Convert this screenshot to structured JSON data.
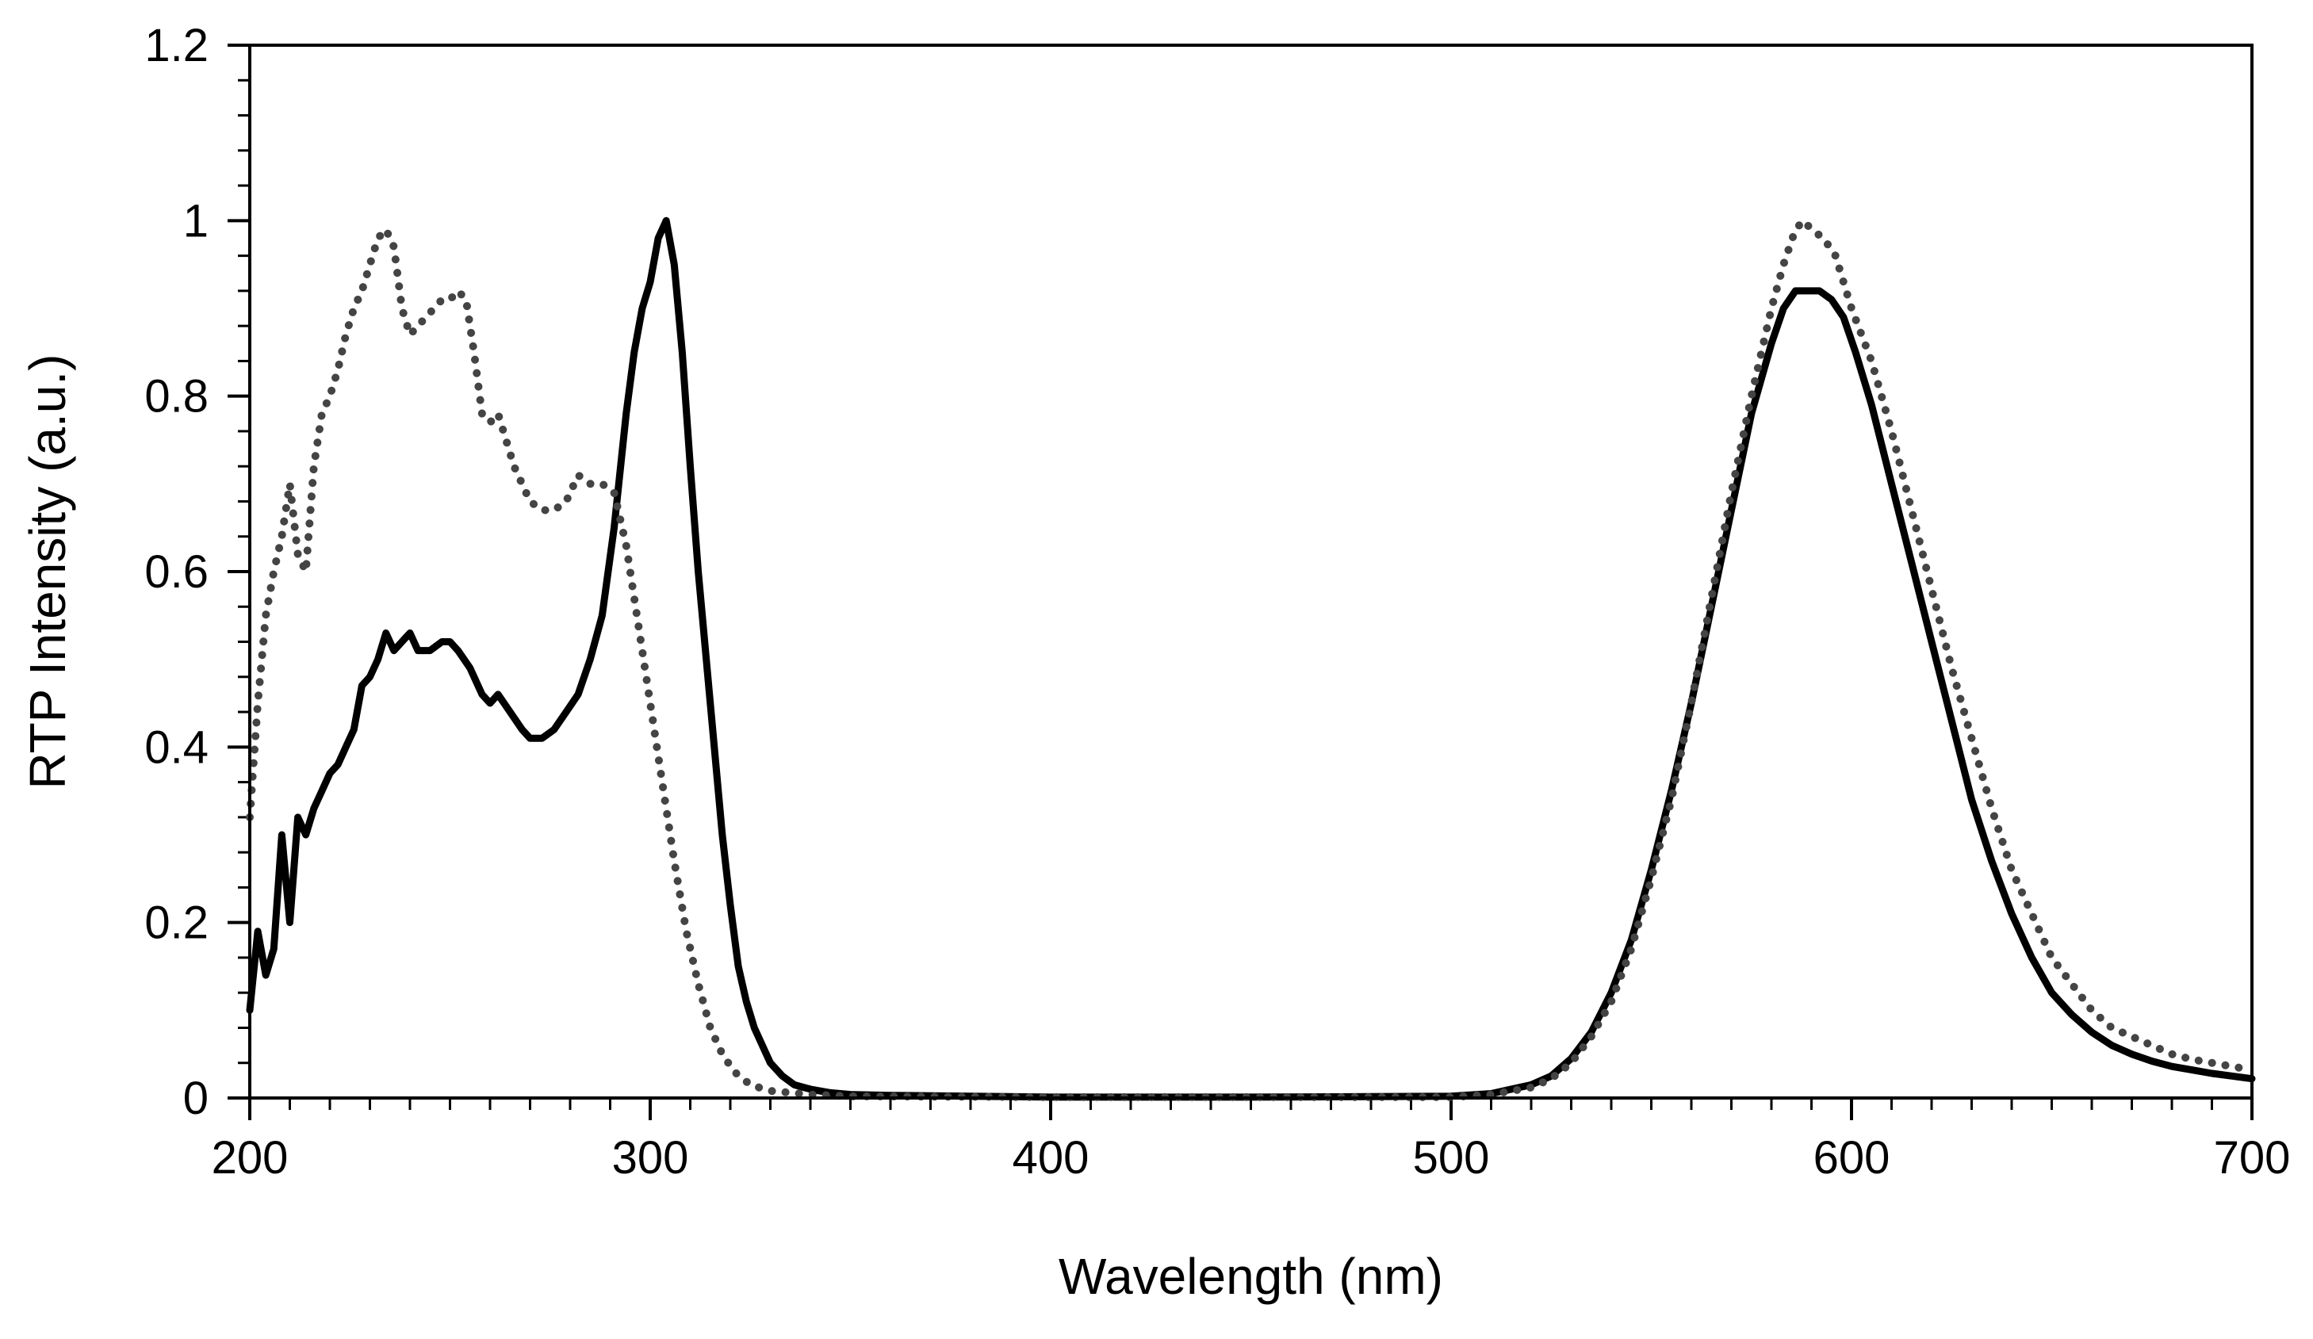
{
  "chart_data": {
    "type": "line",
    "title": "",
    "xlabel": "Wavelength (nm)",
    "ylabel": "RTP Intensity (a.u.)",
    "xlim": [
      200,
      700
    ],
    "ylim": [
      0,
      1.2
    ],
    "x_ticks": [
      200,
      300,
      400,
      500,
      600,
      700
    ],
    "y_ticks": [
      0,
      0.2,
      0.4,
      0.6,
      0.8,
      1,
      1.2
    ],
    "x_tick_labels": [
      "200",
      "300",
      "400",
      "500",
      "600",
      "700"
    ],
    "y_tick_labels": [
      "0",
      "0.2",
      "0.4",
      "0.6",
      "0.8",
      "1",
      "1.2"
    ],
    "x_minor_step": 10,
    "y_minor_step": 0.04,
    "grid": false,
    "legend": "none",
    "series": [
      {
        "name": "solid",
        "style": "solid",
        "color": "#000000",
        "points": [
          [
            200,
            0.1
          ],
          [
            202,
            0.19
          ],
          [
            204,
            0.14
          ],
          [
            206,
            0.17
          ],
          [
            208,
            0.3
          ],
          [
            210,
            0.2
          ],
          [
            212,
            0.32
          ],
          [
            214,
            0.3
          ],
          [
            216,
            0.33
          ],
          [
            218,
            0.35
          ],
          [
            220,
            0.37
          ],
          [
            222,
            0.38
          ],
          [
            224,
            0.4
          ],
          [
            226,
            0.42
          ],
          [
            228,
            0.47
          ],
          [
            230,
            0.48
          ],
          [
            232,
            0.5
          ],
          [
            234,
            0.53
          ],
          [
            236,
            0.51
          ],
          [
            238,
            0.52
          ],
          [
            240,
            0.53
          ],
          [
            242,
            0.51
          ],
          [
            245,
            0.51
          ],
          [
            248,
            0.52
          ],
          [
            250,
            0.52
          ],
          [
            252,
            0.51
          ],
          [
            255,
            0.49
          ],
          [
            258,
            0.46
          ],
          [
            260,
            0.45
          ],
          [
            262,
            0.46
          ],
          [
            265,
            0.44
          ],
          [
            268,
            0.42
          ],
          [
            270,
            0.41
          ],
          [
            273,
            0.41
          ],
          [
            276,
            0.42
          ],
          [
            279,
            0.44
          ],
          [
            282,
            0.46
          ],
          [
            285,
            0.5
          ],
          [
            288,
            0.55
          ],
          [
            291,
            0.65
          ],
          [
            294,
            0.78
          ],
          [
            296,
            0.85
          ],
          [
            298,
            0.9
          ],
          [
            300,
            0.93
          ],
          [
            302,
            0.98
          ],
          [
            304,
            1.0
          ],
          [
            306,
            0.95
          ],
          [
            308,
            0.85
          ],
          [
            310,
            0.72
          ],
          [
            312,
            0.6
          ],
          [
            314,
            0.5
          ],
          [
            316,
            0.4
          ],
          [
            318,
            0.3
          ],
          [
            320,
            0.22
          ],
          [
            322,
            0.15
          ],
          [
            324,
            0.11
          ],
          [
            326,
            0.08
          ],
          [
            328,
            0.06
          ],
          [
            330,
            0.04
          ],
          [
            333,
            0.025
          ],
          [
            336,
            0.015
          ],
          [
            340,
            0.01
          ],
          [
            345,
            0.006
          ],
          [
            350,
            0.004
          ],
          [
            360,
            0.003
          ],
          [
            380,
            0.002
          ],
          [
            400,
            0.001
          ],
          [
            450,
            0.001
          ],
          [
            500,
            0.002
          ],
          [
            510,
            0.005
          ],
          [
            520,
            0.015
          ],
          [
            525,
            0.025
          ],
          [
            530,
            0.045
          ],
          [
            535,
            0.075
          ],
          [
            540,
            0.12
          ],
          [
            545,
            0.18
          ],
          [
            550,
            0.26
          ],
          [
            555,
            0.35
          ],
          [
            560,
            0.45
          ],
          [
            565,
            0.56
          ],
          [
            570,
            0.67
          ],
          [
            575,
            0.78
          ],
          [
            580,
            0.86
          ],
          [
            583,
            0.9
          ],
          [
            586,
            0.92
          ],
          [
            589,
            0.92
          ],
          [
            592,
            0.92
          ],
          [
            595,
            0.91
          ],
          [
            598,
            0.89
          ],
          [
            601,
            0.85
          ],
          [
            605,
            0.79
          ],
          [
            610,
            0.7
          ],
          [
            615,
            0.61
          ],
          [
            620,
            0.52
          ],
          [
            625,
            0.43
          ],
          [
            630,
            0.34
          ],
          [
            635,
            0.27
          ],
          [
            640,
            0.21
          ],
          [
            645,
            0.16
          ],
          [
            650,
            0.12
          ],
          [
            655,
            0.095
          ],
          [
            660,
            0.075
          ],
          [
            665,
            0.06
          ],
          [
            670,
            0.05
          ],
          [
            675,
            0.042
          ],
          [
            680,
            0.036
          ],
          [
            685,
            0.032
          ],
          [
            690,
            0.028
          ],
          [
            695,
            0.025
          ],
          [
            700,
            0.022
          ]
        ]
      },
      {
        "name": "dotted",
        "style": "dotted",
        "color": "#444444",
        "points": [
          [
            200,
            0.32
          ],
          [
            202,
            0.45
          ],
          [
            204,
            0.55
          ],
          [
            206,
            0.6
          ],
          [
            208,
            0.64
          ],
          [
            210,
            0.7
          ],
          [
            212,
            0.62
          ],
          [
            214,
            0.6
          ],
          [
            216,
            0.72
          ],
          [
            218,
            0.78
          ],
          [
            220,
            0.8
          ],
          [
            222,
            0.83
          ],
          [
            224,
            0.87
          ],
          [
            226,
            0.9
          ],
          [
            228,
            0.92
          ],
          [
            230,
            0.95
          ],
          [
            232,
            0.98
          ],
          [
            234,
            0.99
          ],
          [
            236,
            0.97
          ],
          [
            238,
            0.9
          ],
          [
            240,
            0.87
          ],
          [
            242,
            0.88
          ],
          [
            244,
            0.89
          ],
          [
            246,
            0.9
          ],
          [
            248,
            0.91
          ],
          [
            250,
            0.91
          ],
          [
            252,
            0.92
          ],
          [
            254,
            0.91
          ],
          [
            256,
            0.85
          ],
          [
            258,
            0.78
          ],
          [
            260,
            0.77
          ],
          [
            262,
            0.78
          ],
          [
            264,
            0.75
          ],
          [
            266,
            0.72
          ],
          [
            268,
            0.7
          ],
          [
            270,
            0.68
          ],
          [
            273,
            0.67
          ],
          [
            276,
            0.67
          ],
          [
            279,
            0.68
          ],
          [
            282,
            0.71
          ],
          [
            285,
            0.7
          ],
          [
            288,
            0.7
          ],
          [
            291,
            0.69
          ],
          [
            294,
            0.63
          ],
          [
            297,
            0.54
          ],
          [
            300,
            0.45
          ],
          [
            303,
            0.36
          ],
          [
            306,
            0.27
          ],
          [
            309,
            0.19
          ],
          [
            312,
            0.13
          ],
          [
            315,
            0.08
          ],
          [
            318,
            0.05
          ],
          [
            321,
            0.03
          ],
          [
            325,
            0.015
          ],
          [
            330,
            0.008
          ],
          [
            340,
            0.004
          ],
          [
            350,
            0.002
          ],
          [
            400,
            0.001
          ],
          [
            500,
            0.001
          ],
          [
            510,
            0.004
          ],
          [
            520,
            0.012
          ],
          [
            525,
            0.022
          ],
          [
            530,
            0.04
          ],
          [
            535,
            0.07
          ],
          [
            540,
            0.11
          ],
          [
            545,
            0.17
          ],
          [
            550,
            0.25
          ],
          [
            555,
            0.34
          ],
          [
            560,
            0.45
          ],
          [
            565,
            0.57
          ],
          [
            570,
            0.69
          ],
          [
            575,
            0.8
          ],
          [
            580,
            0.9
          ],
          [
            583,
            0.95
          ],
          [
            586,
            0.99
          ],
          [
            588,
            1.0
          ],
          [
            590,
            0.99
          ],
          [
            593,
            0.98
          ],
          [
            596,
            0.96
          ],
          [
            600,
            0.9
          ],
          [
            605,
            0.84
          ],
          [
            610,
            0.76
          ],
          [
            615,
            0.67
          ],
          [
            620,
            0.58
          ],
          [
            625,
            0.49
          ],
          [
            630,
            0.41
          ],
          [
            635,
            0.33
          ],
          [
            640,
            0.26
          ],
          [
            645,
            0.21
          ],
          [
            650,
            0.16
          ],
          [
            655,
            0.13
          ],
          [
            660,
            0.1
          ],
          [
            665,
            0.08
          ],
          [
            670,
            0.07
          ],
          [
            675,
            0.06
          ],
          [
            680,
            0.05
          ],
          [
            685,
            0.044
          ],
          [
            690,
            0.04
          ],
          [
            695,
            0.036
          ],
          [
            700,
            0.032
          ]
        ]
      }
    ]
  }
}
